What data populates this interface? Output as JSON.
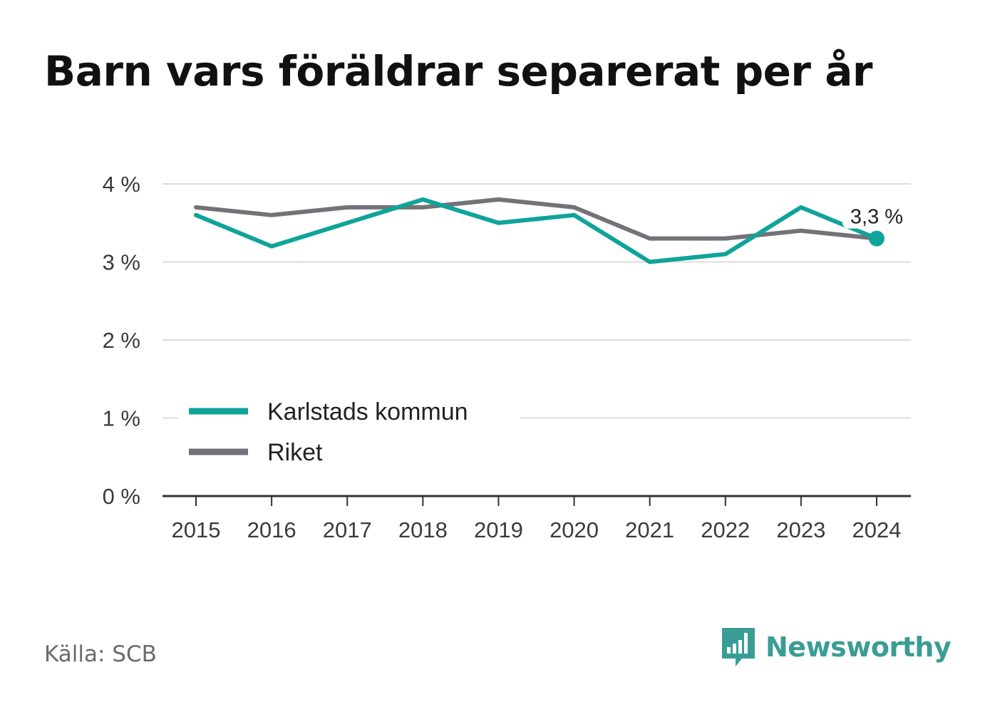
{
  "title": "Barn vars föräldrar separerat per år",
  "source": "Källa: SCB",
  "brand": {
    "name": "Newsworthy",
    "icon": "newsworthy-logo-icon",
    "color": "#3a9d95"
  },
  "chart_data": {
    "type": "line",
    "title": "Barn vars föräldrar separerat per år",
    "x": [
      "2015",
      "2016",
      "2017",
      "2018",
      "2019",
      "2020",
      "2021",
      "2022",
      "2023",
      "2024"
    ],
    "series": [
      {
        "name": "Karlstads kommun",
        "color": "#10a39a",
        "values": [
          3.6,
          3.2,
          3.5,
          3.8,
          3.5,
          3.6,
          3.0,
          3.1,
          3.7,
          3.3
        ]
      },
      {
        "name": "Riket",
        "color": "#737278",
        "values": [
          3.7,
          3.6,
          3.7,
          3.7,
          3.8,
          3.7,
          3.3,
          3.3,
          3.4,
          3.3
        ]
      }
    ],
    "ylim": [
      0,
      4
    ],
    "yticks": [
      0,
      1,
      2,
      3,
      4
    ],
    "ytick_labels": [
      "0 %",
      "1 %",
      "2 %",
      "3 %",
      "4 %"
    ],
    "grid": true,
    "legend": "left",
    "annotation": {
      "series": "Karlstads kommun",
      "x": "2024",
      "label": "3,3 %"
    }
  }
}
